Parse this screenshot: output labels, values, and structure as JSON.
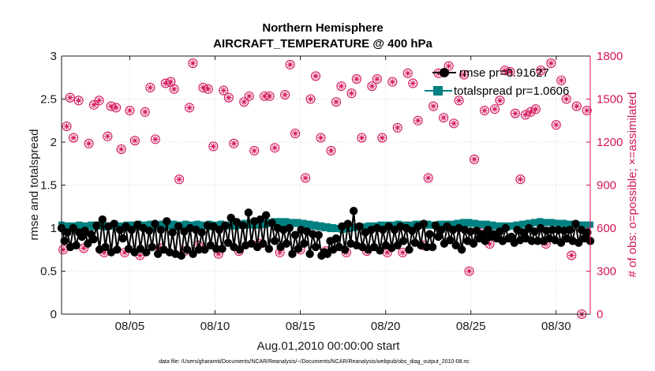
{
  "chart_data": {
    "type": "line",
    "title": "Northern Hemisphere",
    "subtitle": "AIRCRAFT_TEMPERATURE @ 400 hPa",
    "xlabel": "Aug.01,2010 00:00:00 start",
    "ylabel": "rmse and totalspread",
    "y2label": "# of obs: o=possible; ×=assimilated",
    "footnote": "data file: /Users/gharamti/Documents/NCAR/Reanalysis/~/Documents/NCAR/Reanalysis/webpub/obs_diag_output_2010-08.nc",
    "xlim": [
      1,
      32
    ],
    "ylim": [
      0,
      3
    ],
    "y2lim": [
      0,
      1800
    ],
    "x_ticks": [
      5,
      10,
      15,
      20,
      25,
      30
    ],
    "x_tick_labels": [
      "08/05",
      "08/10",
      "08/15",
      "08/20",
      "08/25",
      "08/30"
    ],
    "y_ticks": [
      "0",
      "0.5",
      "1",
      "1.5",
      "2",
      "2.5",
      "3"
    ],
    "y2_ticks": [
      "0",
      "300",
      "600",
      "900",
      "1200",
      "1500",
      "1800"
    ],
    "grid": true,
    "legend_position": "top-right",
    "colors": {
      "rmse": "#000000",
      "totalspread": "#008080",
      "obs_count": "#d4135a"
    },
    "series": [
      {
        "name": "rmse pr=0.91627",
        "axis": "left",
        "marker": "circle",
        "values": [
          1.0,
          0.85,
          0.95,
          0.78,
          1.0,
          0.8,
          0.95,
          0.9,
          0.97,
          0.82,
          0.93,
          0.87,
          1.03,
          0.75,
          1.1,
          0.78,
          1.02,
          0.72,
          1.05,
          0.75,
          0.98,
          0.88,
          1.02,
          0.76,
          0.98,
          0.72,
          1.04,
          0.76,
          1.0,
          0.72,
          0.97,
          0.78,
          1.05,
          0.7,
          0.98,
          0.75,
          1.08,
          0.72,
          0.95,
          0.7,
          1.02,
          0.68,
          0.96,
          0.75,
          1.0,
          0.7,
          0.98,
          0.75,
          0.95,
          0.75,
          1.03,
          0.8,
          1.02,
          0.76,
          0.98,
          0.76,
          1.03,
          0.83,
          1.12,
          0.78,
          1.07,
          0.75,
          1.03,
          0.8,
          1.18,
          0.82,
          1.08,
          0.78,
          1.1,
          0.82,
          1.15,
          0.76,
          1.06,
          0.85,
          1.0,
          0.78,
          0.98,
          0.82,
          1.0,
          0.7,
          0.92,
          0.76,
          0.98,
          0.82,
          0.96,
          0.7,
          0.93,
          0.78,
          0.92,
          0.68,
          0.72,
          0.7,
          0.85,
          0.75,
          0.88,
          0.78,
          1.02,
          0.75,
          1.05,
          0.82,
          1.2,
          0.8,
          1.02,
          0.78,
          0.95,
          0.75,
          0.98,
          0.78,
          1.0,
          0.74,
          0.98,
          0.8,
          1.02,
          0.77,
          0.98,
          0.8,
          1.02,
          0.85,
          1.0,
          0.75,
          0.97,
          0.83,
          1.02,
          0.8,
          1.05,
          0.78,
          0.93,
          0.78,
          1.03,
          0.9,
          0.98,
          0.82,
          1.02,
          0.86,
          0.98,
          0.8,
          1.0,
          0.75,
          0.98,
          0.85,
          0.96,
          0.82,
          0.97,
          0.88,
          0.93,
          0.85,
          0.98,
          0.9,
          0.93,
          0.88,
          0.96,
          0.85,
          1.0,
          0.88,
          0.9,
          0.83,
          0.98,
          0.86,
          0.95,
          0.88,
          1.0,
          0.85,
          0.96,
          0.85,
          1.0,
          0.85,
          0.97,
          0.88,
          0.98,
          0.86,
          0.98,
          0.83,
          0.97,
          0.88,
          0.98,
          0.85,
          1.05,
          0.83,
          0.98,
          0.88,
          0.95,
          0.85
        ]
      },
      {
        "name": "totalspread pr=1.0606",
        "axis": "left",
        "marker": "square",
        "values": [
          1.04,
          1.02,
          1.03,
          1.01,
          1.03,
          1.02,
          1.04,
          1.0,
          1.03,
          1.02,
          1.04,
          1.01,
          1.04,
          1.02,
          1.05,
          1.01,
          1.03,
          1.02,
          1.05,
          1.01,
          1.03,
          1.02,
          1.04,
          1.0,
          1.04,
          1.02,
          1.05,
          1.01,
          1.04,
          1.02,
          1.05,
          1.01,
          1.04,
          1.02,
          1.05,
          1.01,
          1.04,
          1.02,
          1.05,
          1.01,
          1.04,
          1.02,
          1.05,
          1.01,
          1.04,
          1.02,
          1.05,
          1.01,
          1.04,
          1.02,
          1.05,
          1.01,
          1.04,
          1.02,
          1.05,
          1.02,
          1.04,
          1.02,
          1.05,
          1.02,
          1.05,
          1.03,
          1.06,
          1.03,
          1.05,
          1.03,
          1.06,
          1.03,
          1.06,
          1.04,
          1.07,
          1.05,
          1.08,
          1.06,
          1.08,
          1.05,
          1.08,
          1.06,
          1.07,
          1.05,
          1.07,
          1.04,
          1.06,
          1.03,
          1.05,
          1.02,
          1.04,
          1.01,
          1.03,
          1.0,
          1.02,
          0.99,
          1.01,
          0.99,
          1.0,
          0.98,
          1.0,
          0.99,
          1.01,
          1.0,
          1.02,
          1.01,
          1.02,
          1.01,
          1.03,
          1.01,
          1.03,
          1.02,
          1.04,
          1.02,
          1.04,
          1.02,
          1.04,
          1.03,
          1.05,
          1.03,
          1.04,
          1.02,
          1.04,
          1.03,
          1.05,
          1.03,
          1.05,
          1.03,
          1.05,
          1.03,
          1.04,
          1.03,
          1.05,
          1.03,
          1.05,
          1.03,
          1.05,
          1.04,
          1.06,
          1.05,
          1.07,
          1.05,
          1.07,
          1.05,
          1.06,
          1.04,
          1.05,
          1.03,
          1.05,
          1.02,
          1.04,
          1.02,
          1.03,
          1.01,
          1.03,
          1.01,
          1.03,
          1.02,
          1.04,
          1.03,
          1.05,
          1.04,
          1.06,
          1.05,
          1.07,
          1.06,
          1.08,
          1.06,
          1.07,
          1.06,
          1.07,
          1.06,
          1.06,
          1.05,
          1.06,
          1.04,
          1.05,
          1.04,
          1.05,
          1.04,
          1.04,
          1.04,
          1.04,
          1.04
        ]
      },
      {
        "name": "# of obs",
        "axis": "right",
        "marker": "circle-asterisk",
        "x": [
          1.1,
          1.3,
          1.5,
          1.7,
          2.0,
          2.3,
          2.6,
          2.9,
          3.2,
          3.5,
          3.7,
          3.9,
          4.2,
          4.5,
          4.7,
          5.0,
          5.3,
          5.6,
          5.9,
          6.2,
          6.5,
          6.8,
          7.1,
          7.4,
          7.6,
          7.9,
          8.2,
          8.5,
          8.7,
          9.0,
          9.3,
          9.6,
          9.9,
          10.2,
          10.5,
          10.8,
          11.1,
          11.4,
          11.7,
          12.0,
          12.3,
          12.6,
          12.9,
          13.2,
          13.5,
          13.8,
          14.1,
          14.4,
          14.7,
          15.0,
          15.3,
          15.6,
          15.9,
          16.2,
          16.5,
          16.8,
          17.1,
          17.4,
          17.7,
          18.0,
          18.3,
          18.6,
          18.9,
          19.2,
          19.5,
          19.8,
          20.1,
          20.4,
          20.7,
          21.0,
          21.3,
          21.6,
          21.9,
          22.2,
          22.5,
          22.8,
          23.1,
          23.4,
          23.7,
          24.0,
          24.3,
          24.6,
          24.9,
          25.2,
          25.5,
          25.8,
          26.1,
          26.4,
          26.7,
          27.0,
          27.3,
          27.6,
          27.9,
          28.2,
          28.5,
          28.8,
          29.1,
          29.4,
          29.7,
          30.0,
          30.3,
          30.6,
          30.9,
          31.2,
          31.5,
          31.8
        ],
        "values": [
          450,
          1310,
          1510,
          1230,
          1490,
          460,
          1190,
          1460,
          1490,
          430,
          1240,
          1450,
          1440,
          1150,
          430,
          1420,
          1210,
          410,
          1410,
          1580,
          1220,
          460,
          1610,
          1620,
          1570,
          940,
          440,
          1440,
          1750,
          480,
          1580,
          1570,
          1170,
          420,
          1560,
          1510,
          1190,
          440,
          1480,
          1520,
          1140,
          490,
          1520,
          1520,
          1160,
          430,
          1530,
          1740,
          1260,
          450,
          950,
          1500,
          1660,
          1230,
          440,
          1140,
          1480,
          1590,
          430,
          1540,
          1640,
          1230,
          440,
          1590,
          1640,
          1230,
          430,
          1620,
          1300,
          430,
          1680,
          1610,
          1350,
          480,
          950,
          1450,
          1680,
          1370,
          1730,
          1330,
          1490,
          1670,
          300,
          1080,
          600,
          1420,
          490,
          1430,
          1490,
          1700,
          1690,
          1400,
          940,
          1390,
          1410,
          1430,
          1700,
          490,
          1750,
          1320,
          1630,
          1500,
          410,
          1450,
          0,
          1420
        ]
      }
    ]
  }
}
